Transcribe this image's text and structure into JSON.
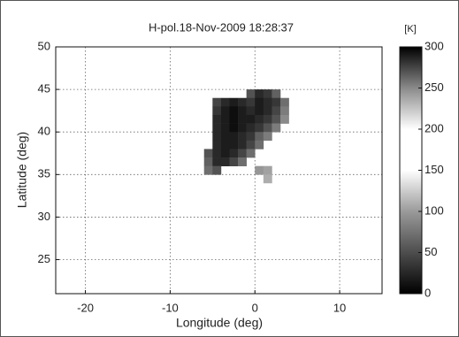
{
  "chart_data": {
    "type": "heatmap",
    "title": "H-pol.18-Nov-2009 18:28:37",
    "xlabel": "Longitude (deg)",
    "ylabel": "Latitude (deg)",
    "xlim": [
      -23.5,
      15
    ],
    "ylim": [
      21,
      50
    ],
    "xticks": [
      -20,
      -10,
      0,
      10
    ],
    "yticks": [
      25,
      30,
      35,
      40,
      45,
      50
    ],
    "grid": true,
    "cell_size": 1,
    "x": [
      -0.5,
      0.5,
      1.5,
      2.5,
      -4.5,
      -3.5,
      -2.5,
      -1.5,
      -0.5,
      0.5,
      1.5,
      2.5,
      3.5,
      -4.5,
      -3.5,
      -2.5,
      -1.5,
      -0.5,
      0.5,
      1.5,
      2.5,
      3.5,
      -4.5,
      -3.5,
      -2.5,
      -1.5,
      -0.5,
      0.5,
      1.5,
      2.5,
      3.5,
      -4.5,
      -3.5,
      -2.5,
      -1.5,
      -0.5,
      0.5,
      1.5,
      2.5,
      -4.5,
      -3.5,
      -2.5,
      -1.5,
      -0.5,
      0.5,
      1.5,
      -4.5,
      -3.5,
      -2.5,
      -1.5,
      -0.5,
      0.5,
      -5.5,
      -4.5,
      -3.5,
      -2.5,
      -1.5,
      -0.5,
      -5.5,
      -4.5,
      -3.5,
      -2.5,
      -1.5,
      -5.5,
      -4.5,
      0.5,
      1.5,
      1.5
    ],
    "y": [
      44.5,
      44.5,
      44.5,
      44.5,
      43.5,
      43.5,
      43.5,
      43.5,
      43.5,
      43.5,
      43.5,
      43.5,
      43.5,
      42.5,
      42.5,
      42.5,
      42.5,
      42.5,
      42.5,
      42.5,
      42.5,
      42.5,
      41.5,
      41.5,
      41.5,
      41.5,
      41.5,
      41.5,
      41.5,
      41.5,
      41.5,
      40.5,
      40.5,
      40.5,
      40.5,
      40.5,
      40.5,
      40.5,
      40.5,
      39.5,
      39.5,
      39.5,
      39.5,
      39.5,
      39.5,
      39.5,
      38.5,
      38.5,
      38.5,
      38.5,
      38.5,
      38.5,
      37.5,
      37.5,
      37.5,
      37.5,
      37.5,
      37.5,
      36.5,
      36.5,
      36.5,
      36.5,
      36.5,
      35.5,
      35.5,
      35.5,
      35.5,
      34.5
    ],
    "values": [
      270,
      285,
      280,
      265,
      275,
      285,
      290,
      285,
      280,
      290,
      285,
      280,
      260,
      280,
      290,
      295,
      290,
      285,
      290,
      285,
      275,
      255,
      285,
      290,
      295,
      290,
      290,
      285,
      280,
      270,
      250,
      285,
      290,
      295,
      290,
      285,
      280,
      270,
      255,
      285,
      290,
      290,
      285,
      280,
      265,
      255,
      285,
      290,
      290,
      285,
      275,
      260,
      270,
      285,
      290,
      285,
      275,
      260,
      265,
      285,
      285,
      275,
      260,
      260,
      270,
      245,
      240,
      235
    ],
    "colorbar_label": "[K]",
    "clim": [
      0,
      300
    ],
    "cticks": [
      0,
      50,
      100,
      150,
      200,
      250,
      300
    ],
    "colormap": [
      {
        "value": 0,
        "color": "#000000"
      },
      {
        "value": 100,
        "color": "#9a9a9a"
      },
      {
        "value": 150,
        "color": "#ffffff"
      },
      {
        "value": 200,
        "color": "#ffffff"
      },
      {
        "value": 250,
        "color": "#8a8a8a"
      },
      {
        "value": 300,
        "color": "#000000"
      }
    ]
  }
}
